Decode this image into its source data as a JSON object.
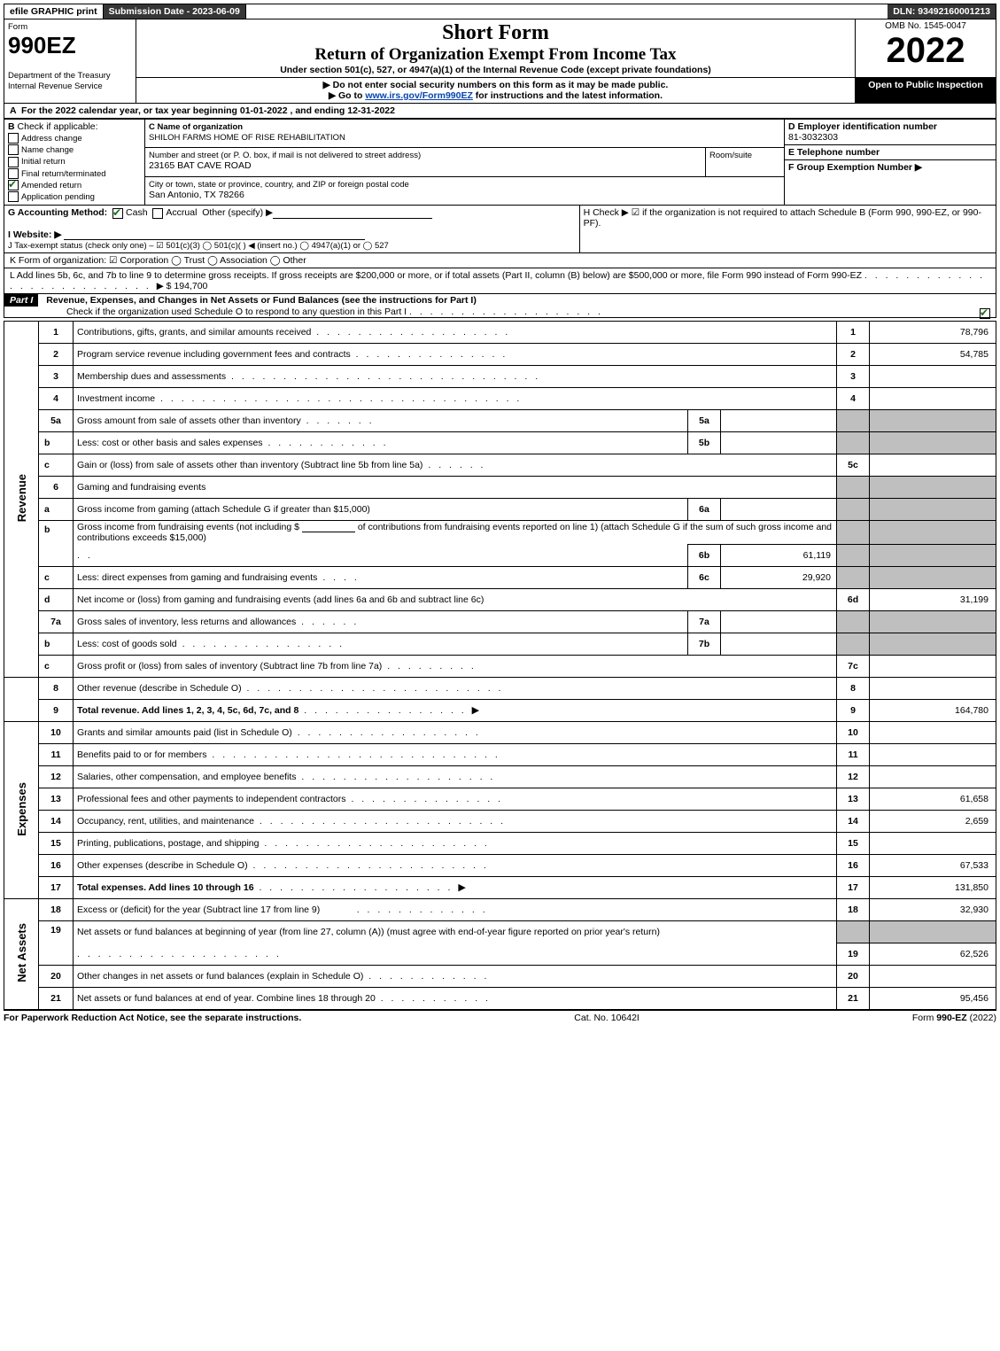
{
  "top": {
    "efile": "efile GRAPHIC print",
    "subdate": "Submission Date - 2023-06-09",
    "dln": "DLN: 93492160001213"
  },
  "hdr": {
    "form_word": "Form",
    "form_num": "990EZ",
    "dept": "Department of the Treasury\nInternal Revenue Service",
    "short": "Short Form",
    "title": "Return of Organization Exempt From Income Tax",
    "subnote": "Under section 501(c), 527, or 4947(a)(1) of the Internal Revenue Code (except private foundations)",
    "warn1": "▶ Do not enter social security numbers on this form as it may be made public.",
    "warn2": "▶ Go to www.irs.gov/Form990EZ for instructions and the latest information.",
    "omb": "OMB No. 1545-0047",
    "year": "2022",
    "open": "Open to Public Inspection"
  },
  "A": {
    "text": "For the 2022 calendar year, or tax year beginning 01-01-2022 , and ending 12-31-2022"
  },
  "B": {
    "label": "Check if applicable:",
    "items": [
      "Address change",
      "Name change",
      "Initial return",
      "Final return/terminated",
      "Amended return",
      "Application pending"
    ],
    "checked": [
      false,
      false,
      false,
      false,
      true,
      false
    ]
  },
  "C": {
    "name_label": "C Name of organization",
    "name": "SHILOH FARMS HOME OF RISE REHABILITATION",
    "street_label": "Number and street (or P. O. box, if mail is not delivered to street address)",
    "room_label": "Room/suite",
    "street": "23165 BAT CAVE ROAD",
    "city_label": "City or town, state or province, country, and ZIP or foreign postal code",
    "city": "San Antonio, TX  78266"
  },
  "D": {
    "label": "D Employer identification number",
    "val": "81-3032303"
  },
  "E": {
    "label": "E Telephone number",
    "val": ""
  },
  "F": {
    "label": "F Group Exemption Number  ▶",
    "val": ""
  },
  "G": {
    "label": "G Accounting Method:",
    "cash": "Cash",
    "accrual": "Accrual",
    "other": "Other (specify) ▶"
  },
  "H": {
    "text": "H  Check ▶  ☑  if the organization is not required to attach Schedule B (Form 990, 990-EZ, or 990-PF)."
  },
  "I": {
    "label": "I Website: ▶"
  },
  "J": {
    "text": "J Tax-exempt status (check only one) – ☑ 501(c)(3)  ◯ 501(c)(  ) ◀ (insert no.)  ◯ 4947(a)(1) or  ◯ 527"
  },
  "K": {
    "text": "K Form of organization:  ☑ Corporation  ◯ Trust  ◯ Association  ◯ Other"
  },
  "L": {
    "text": "L Add lines 5b, 6c, and 7b to line 9 to determine gross receipts. If gross receipts are $200,000 or more, or if total assets (Part II, column (B) below) are $500,000 or more, file Form 990 instead of Form 990-EZ",
    "amount": "▶ $ 194,700"
  },
  "part1": {
    "title": "Part I",
    "heading": "Revenue, Expenses, and Changes in Net Assets or Fund Balances (see the instructions for Part I)",
    "sub": "Check if the organization used Schedule O to respond to any question in this Part I",
    "sub_checked": true
  },
  "sides": {
    "rev": "Revenue",
    "exp": "Expenses",
    "na": "Net Assets"
  },
  "lines": {
    "l1": {
      "n": "1",
      "d": "Contributions, gifts, grants, and similar amounts received",
      "ref": "1",
      "amt": "78,796"
    },
    "l2": {
      "n": "2",
      "d": "Program service revenue including government fees and contracts",
      "ref": "2",
      "amt": "54,785"
    },
    "l3": {
      "n": "3",
      "d": "Membership dues and assessments",
      "ref": "3",
      "amt": ""
    },
    "l4": {
      "n": "4",
      "d": "Investment income",
      "ref": "4",
      "amt": ""
    },
    "l5a": {
      "n": "5a",
      "d": "Gross amount from sale of assets other than inventory",
      "mid": "5a",
      "mv": ""
    },
    "l5b": {
      "n": "b",
      "d": "Less: cost or other basis and sales expenses",
      "mid": "5b",
      "mv": ""
    },
    "l5c": {
      "n": "c",
      "d": "Gain or (loss) from sale of assets other than inventory (Subtract line 5b from line 5a)",
      "ref": "5c",
      "amt": ""
    },
    "l6": {
      "n": "6",
      "d": "Gaming and fundraising events"
    },
    "l6a": {
      "n": "a",
      "d": "Gross income from gaming (attach Schedule G if greater than $15,000)",
      "mid": "6a",
      "mv": ""
    },
    "l6b": {
      "n": "b",
      "d1": "Gross income from fundraising events (not including $",
      "d2": "of contributions from fundraising events reported on line 1) (attach Schedule G if the sum of such gross income and contributions exceeds $15,000)",
      "mid": "6b",
      "mv": "61,119"
    },
    "l6c": {
      "n": "c",
      "d": "Less: direct expenses from gaming and fundraising events",
      "mid": "6c",
      "mv": "29,920"
    },
    "l6d": {
      "n": "d",
      "d": "Net income or (loss) from gaming and fundraising events (add lines 6a and 6b and subtract line 6c)",
      "ref": "6d",
      "amt": "31,199"
    },
    "l7a": {
      "n": "7a",
      "d": "Gross sales of inventory, less returns and allowances",
      "mid": "7a",
      "mv": ""
    },
    "l7b": {
      "n": "b",
      "d": "Less: cost of goods sold",
      "mid": "7b",
      "mv": ""
    },
    "l7c": {
      "n": "c",
      "d": "Gross profit or (loss) from sales of inventory (Subtract line 7b from line 7a)",
      "ref": "7c",
      "amt": ""
    },
    "l8": {
      "n": "8",
      "d": "Other revenue (describe in Schedule O)",
      "ref": "8",
      "amt": ""
    },
    "l9": {
      "n": "9",
      "d": "Total revenue. Add lines 1, 2, 3, 4, 5c, 6d, 7c, and 8",
      "ref": "9",
      "amt": "164,780",
      "arrow": "▶"
    },
    "l10": {
      "n": "10",
      "d": "Grants and similar amounts paid (list in Schedule O)",
      "ref": "10",
      "amt": ""
    },
    "l11": {
      "n": "11",
      "d": "Benefits paid to or for members",
      "ref": "11",
      "amt": ""
    },
    "l12": {
      "n": "12",
      "d": "Salaries, other compensation, and employee benefits",
      "ref": "12",
      "amt": ""
    },
    "l13": {
      "n": "13",
      "d": "Professional fees and other payments to independent contractors",
      "ref": "13",
      "amt": "61,658"
    },
    "l14": {
      "n": "14",
      "d": "Occupancy, rent, utilities, and maintenance",
      "ref": "14",
      "amt": "2,659"
    },
    "l15": {
      "n": "15",
      "d": "Printing, publications, postage, and shipping",
      "ref": "15",
      "amt": ""
    },
    "l16": {
      "n": "16",
      "d": "Other expenses (describe in Schedule O)",
      "ref": "16",
      "amt": "67,533"
    },
    "l17": {
      "n": "17",
      "d": "Total expenses. Add lines 10 through 16",
      "ref": "17",
      "amt": "131,850",
      "arrow": "▶"
    },
    "l18": {
      "n": "18",
      "d": "Excess or (deficit) for the year (Subtract line 17 from line 9)",
      "ref": "18",
      "amt": "32,930"
    },
    "l19": {
      "n": "19",
      "d": "Net assets or fund balances at beginning of year (from line 27, column (A)) (must agree with end-of-year figure reported on prior year's return)",
      "ref": "19",
      "amt": "62,526"
    },
    "l20": {
      "n": "20",
      "d": "Other changes in net assets or fund balances (explain in Schedule O)",
      "ref": "20",
      "amt": ""
    },
    "l21": {
      "n": "21",
      "d": "Net assets or fund balances at end of year. Combine lines 18 through 20",
      "ref": "21",
      "amt": "95,456"
    }
  },
  "footer": {
    "left": "For Paperwork Reduction Act Notice, see the separate instructions.",
    "mid": "Cat. No. 10642I",
    "right": "Form 990-EZ (2022)"
  }
}
